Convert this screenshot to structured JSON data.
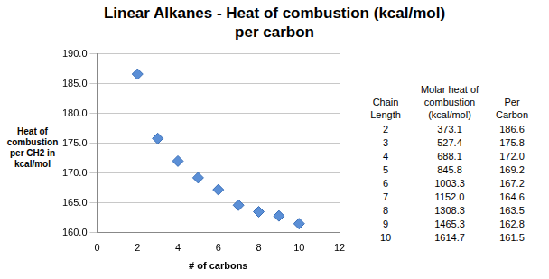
{
  "chart_data": {
    "type": "scatter",
    "title": "Linear Alkanes - Heat of combustion (kcal/mol) per carbon",
    "x_label": "# of carbons",
    "y_label": "Heat of combustion per CH2 in kcal/mol",
    "x": [
      2,
      3,
      4,
      5,
      6,
      7,
      8,
      9,
      10
    ],
    "values": [
      186.6,
      175.8,
      172.0,
      169.2,
      167.2,
      164.6,
      163.5,
      162.8,
      161.5
    ],
    "color": "#5b8fd6",
    "marker": "diamond",
    "xlim": [
      0,
      12
    ],
    "xticks": [
      0,
      2,
      4,
      6,
      8,
      10,
      12
    ],
    "ylim": [
      160,
      190
    ],
    "yticks": [
      {
        "value": 160,
        "label": "160.0"
      },
      {
        "value": 165,
        "label": "165.0"
      },
      {
        "value": 170,
        "label": "170.0"
      },
      {
        "value": 175,
        "label": "175.0"
      },
      {
        "value": 180,
        "label": "180.0"
      },
      {
        "value": 185,
        "label": "185.0"
      },
      {
        "value": 190,
        "label": "190.0"
      }
    ],
    "grid": true
  },
  "table": {
    "header": [
      "Chain Length",
      "Molar heat of combustion (kcal/mol)",
      "Per Carbon"
    ],
    "rows": [
      [
        "2",
        "373.1",
        "186.6"
      ],
      [
        "3",
        "527.4",
        "175.8"
      ],
      [
        "4",
        "688.1",
        "172.0"
      ],
      [
        "5",
        "845.8",
        "169.2"
      ],
      [
        "6",
        "1003.3",
        "167.2"
      ],
      [
        "7",
        "1152.0",
        "164.6"
      ],
      [
        "8",
        "1308.3",
        "163.5"
      ],
      [
        "9",
        "1465.3",
        "162.8"
      ],
      [
        "10",
        "1614.7",
        "161.5"
      ]
    ]
  }
}
